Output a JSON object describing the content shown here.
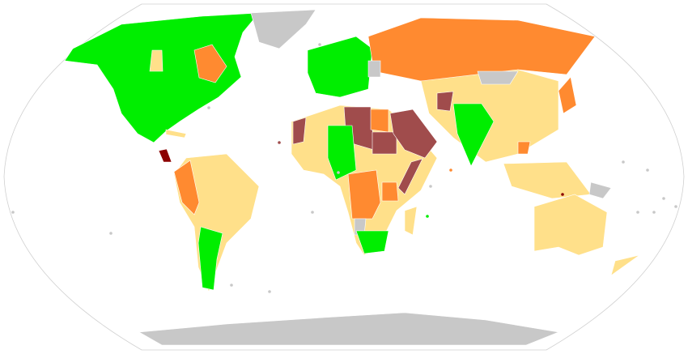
{
  "map": {
    "projection": "robinson-world",
    "palette": {
      "green": "#00ee00",
      "yellow": "#ffe08a",
      "orange": "#ff8a30",
      "brown": "#a04c4c",
      "darkred": "#8b0000",
      "nodata": "#c8c8c8",
      "outline": "#d0d0d0"
    }
  }
}
